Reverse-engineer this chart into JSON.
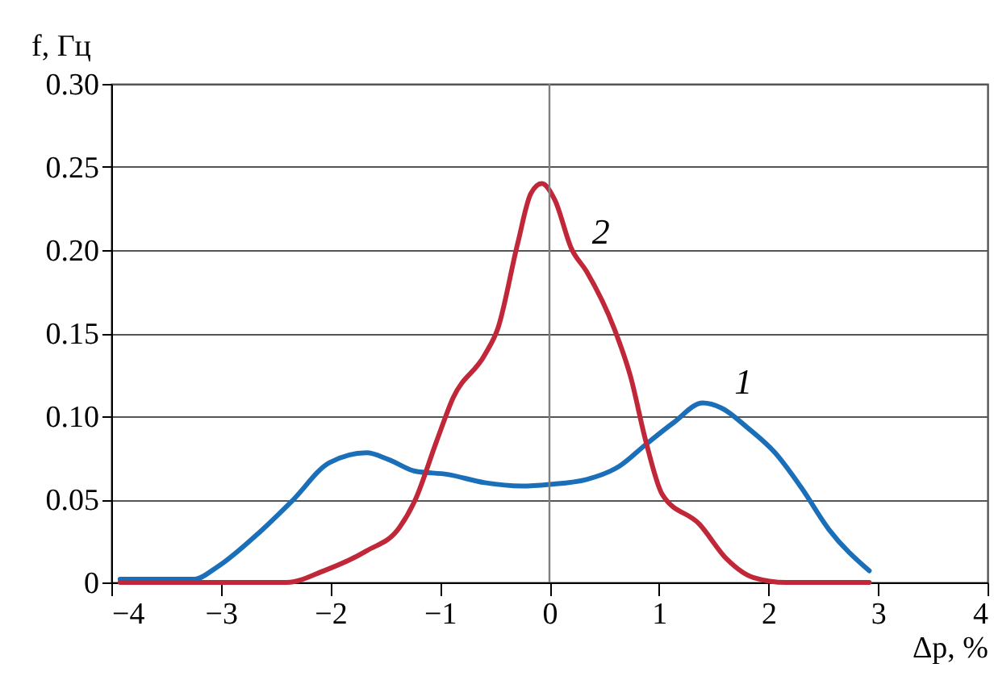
{
  "chart_data": {
    "type": "line",
    "xlabel": "Δp, %",
    "ylabel": "f, Гц",
    "xlim": [
      -4,
      4
    ],
    "xticks": [
      -4,
      -3,
      -2,
      -1,
      0,
      1,
      2,
      3,
      4
    ],
    "ylim": [
      0,
      0.3
    ],
    "yticks": [
      0,
      0.05,
      {
        "value": 0.1,
        "label": "0.10"
      },
      0.15,
      {
        "value": 0.2,
        "label": "0.20"
      },
      0.25,
      {
        "value": 0.3,
        "label": "0.30"
      }
    ],
    "grid": "y",
    "line_style": "solid",
    "marker": "none",
    "ref_lines": [
      {
        "axis": "x",
        "value": 0,
        "color": "#7f7f7f"
      }
    ],
    "annotations": [
      {
        "text": "1",
        "x": 1.6,
        "y": 0.105
      },
      {
        "text": "2",
        "x": 0.3,
        "y": 0.195
      }
    ],
    "series": [
      {
        "color": "#1a6fb8",
        "x": [
          -3.92,
          -3.24,
          -3.04,
          -2.65,
          -2.35,
          -2.01,
          -1.67,
          -1.47,
          -1.23,
          -0.93,
          -0.59,
          -0.25,
          0,
          0.34,
          0.64,
          0.88,
          1.13,
          1.4,
          1.57,
          1.81,
          2.06,
          2.3,
          2.55,
          2.92
        ],
        "values": [
          0.002,
          0.002,
          0.009,
          0.03,
          0.049,
          0.072,
          0.078,
          0.074,
          0.067,
          0.065,
          0.06,
          0.058,
          0.059,
          0.062,
          0.07,
          0.083,
          0.096,
          0.108,
          0.105,
          0.093,
          0.078,
          0.057,
          0.032,
          0.007
        ]
      },
      {
        "color": "#c0283a",
        "x": [
          -3.92,
          -2.4,
          -2.06,
          -1.67,
          -1.37,
          -1.23,
          -1.03,
          -0.88,
          -0.59,
          -0.47,
          -0.29,
          -0.17,
          -0.07,
          0.05,
          0.2,
          0.34,
          0.59,
          0.74,
          0.88,
          1.03,
          1.37,
          1.62,
          1.86,
          2.16,
          2.92
        ],
        "values": [
          0,
          0,
          0.007,
          0.019,
          0.033,
          0.049,
          0.085,
          0.111,
          0.137,
          0.153,
          0.204,
          0.234,
          0.24,
          0.23,
          0.201,
          0.187,
          0.153,
          0.124,
          0.085,
          0.053,
          0.035,
          0.014,
          0.003,
          0,
          0
        ]
      }
    ]
  }
}
